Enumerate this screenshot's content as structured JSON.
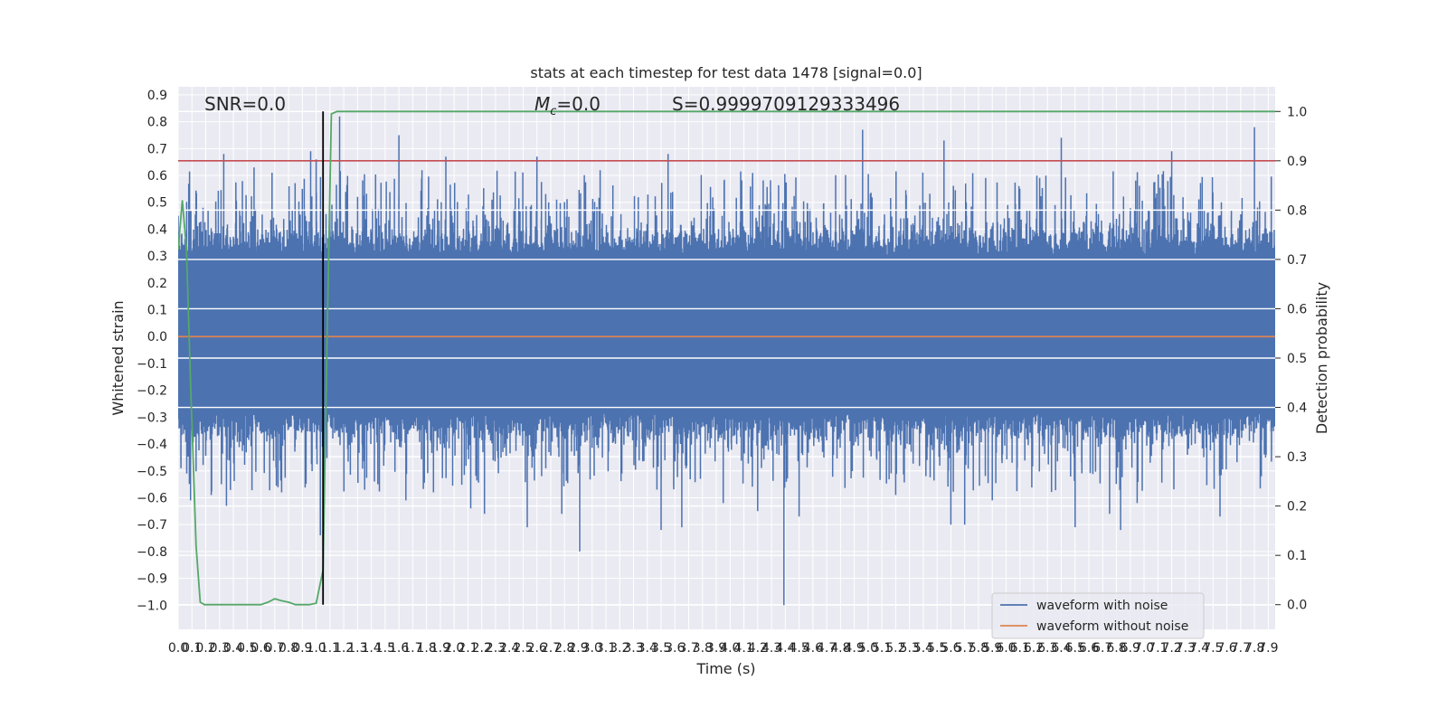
{
  "chart_data": {
    "type": "line",
    "title": "stats at each timestep for test data 1478 [signal=0.0]",
    "xlabel": "Time (s)",
    "ylabel": "Whitened strain",
    "y2label": "Detection probability",
    "xlim": [
      0.0,
      7.95
    ],
    "ylim": [
      -1.09,
      0.93
    ],
    "y2lim": [
      -0.05,
      1.05
    ],
    "x_ticks": [
      "0.0",
      "0.1",
      "0.2",
      "0.3",
      "0.4",
      "0.5",
      "0.6",
      "0.7",
      "0.8",
      "0.9",
      "1.0",
      "1.1",
      "1.2",
      "1.3",
      "1.4",
      "1.5",
      "1.6",
      "1.7",
      "1.8",
      "1.9",
      "2.0",
      "2.1",
      "2.2",
      "2.3",
      "2.4",
      "2.5",
      "2.6",
      "2.7",
      "2.8",
      "2.9",
      "3.0",
      "3.1",
      "3.2",
      "3.3",
      "3.4",
      "3.5",
      "3.6",
      "3.7",
      "3.8",
      "3.9",
      "4.0",
      "4.1",
      "4.2",
      "4.3",
      "4.4",
      "4.5",
      "4.6",
      "4.7",
      "4.8",
      "4.9",
      "5.0",
      "5.1",
      "5.2",
      "5.3",
      "5.4",
      "5.5",
      "5.6",
      "5.7",
      "5.8",
      "5.9",
      "6.0",
      "6.1",
      "6.2",
      "6.3",
      "6.4",
      "6.5",
      "6.6",
      "6.7",
      "6.8",
      "6.9",
      "7.0",
      "7.1",
      "7.2",
      "7.3",
      "7.4",
      "7.5",
      "7.6",
      "7.7",
      "7.8",
      "7.9"
    ],
    "y_ticks": [
      "-1.0",
      "-0.9",
      "-0.8",
      "-0.7",
      "-0.6",
      "-0.5",
      "-0.4",
      "-0.3",
      "-0.2",
      "-0.1",
      "0.0",
      "0.1",
      "0.2",
      "0.3",
      "0.4",
      "0.5",
      "0.6",
      "0.7",
      "0.8",
      "0.9"
    ],
    "y2_ticks": [
      "0.0",
      "0.1",
      "0.2",
      "0.3",
      "0.4",
      "0.5",
      "0.6",
      "0.7",
      "0.8",
      "0.9",
      "1.0"
    ],
    "annotations": {
      "snr": "SNR=0.0",
      "mc_symbol": "M",
      "mc_sub": "c",
      "mc_value": "=0.0",
      "score": "S=0.9999709129333496"
    },
    "legend": {
      "placement": "lower right",
      "entries": [
        {
          "label": "waveform with noise",
          "color": "#4c72b0"
        },
        {
          "label": "waveform without noise",
          "color": "#dd8452"
        }
      ]
    },
    "threshold": {
      "axis": "right",
      "value": 0.9,
      "color": "#c44e52"
    },
    "marker_x": 1.05,
    "series": [
      {
        "name": "waveform with noise",
        "axis": "left",
        "color": "#4c72b0",
        "style": "dense noise, typical band -0.35 to 0.45, peaks listed",
        "peaks": [
          {
            "x": 0.0,
            "y": 0.45
          },
          {
            "x": 0.02,
            "y": -0.49
          },
          {
            "x": 0.08,
            "y": 0.5
          },
          {
            "x": 0.09,
            "y": -0.61
          },
          {
            "x": 0.18,
            "y": 0.48
          },
          {
            "x": 0.24,
            "y": -0.59
          },
          {
            "x": 0.33,
            "y": 0.68
          },
          {
            "x": 0.35,
            "y": -0.63
          },
          {
            "x": 0.45,
            "y": 0.45
          },
          {
            "x": 0.55,
            "y": 0.63
          },
          {
            "x": 0.68,
            "y": 0.61
          },
          {
            "x": 0.75,
            "y": -0.58
          },
          {
            "x": 0.9,
            "y": 0.55
          },
          {
            "x": 0.96,
            "y": 0.69
          },
          {
            "x": 1.0,
            "y": 0.66
          },
          {
            "x": 1.03,
            "y": -0.74
          },
          {
            "x": 1.06,
            "y": -0.62
          },
          {
            "x": 1.1,
            "y": 0.47
          },
          {
            "x": 1.17,
            "y": 0.82
          },
          {
            "x": 1.3,
            "y": 0.52
          },
          {
            "x": 1.6,
            "y": 0.75
          },
          {
            "x": 1.65,
            "y": -0.61
          },
          {
            "x": 1.85,
            "y": -0.58
          },
          {
            "x": 1.94,
            "y": 0.67
          },
          {
            "x": 2.12,
            "y": -0.64
          },
          {
            "x": 2.22,
            "y": -0.66
          },
          {
            "x": 2.53,
            "y": -0.71
          },
          {
            "x": 2.6,
            "y": 0.67
          },
          {
            "x": 2.78,
            "y": -0.66
          },
          {
            "x": 2.91,
            "y": -0.8
          },
          {
            "x": 3.5,
            "y": -0.72
          },
          {
            "x": 3.55,
            "y": 0.68
          },
          {
            "x": 3.65,
            "y": -0.71
          },
          {
            "x": 3.95,
            "y": -0.62
          },
          {
            "x": 4.2,
            "y": -0.65
          },
          {
            "x": 4.39,
            "y": -1.0
          },
          {
            "x": 4.5,
            "y": -0.67
          },
          {
            "x": 4.96,
            "y": 0.77
          },
          {
            "x": 5.2,
            "y": -0.59
          },
          {
            "x": 5.55,
            "y": 0.73
          },
          {
            "x": 5.6,
            "y": -0.7
          },
          {
            "x": 5.7,
            "y": -0.7
          },
          {
            "x": 5.9,
            "y": -0.61
          },
          {
            "x": 6.4,
            "y": 0.74
          },
          {
            "x": 6.5,
            "y": -0.71
          },
          {
            "x": 6.75,
            "y": -0.66
          },
          {
            "x": 6.83,
            "y": -0.72
          },
          {
            "x": 6.95,
            "y": -0.62
          },
          {
            "x": 7.2,
            "y": 0.69
          },
          {
            "x": 7.55,
            "y": -0.67
          },
          {
            "x": 7.8,
            "y": 0.78
          },
          {
            "x": 7.85,
            "y": -0.52
          }
        ]
      },
      {
        "name": "waveform without noise",
        "axis": "left",
        "color": "#dd8452",
        "x": [
          0.0,
          7.95
        ],
        "y": [
          0.0,
          0.0
        ]
      },
      {
        "name": "detection probability",
        "axis": "right",
        "color": "#55a868",
        "x": [
          0.0,
          0.03,
          0.06,
          0.09,
          0.13,
          0.16,
          0.19,
          0.25,
          0.3,
          0.35,
          0.4,
          0.45,
          0.5,
          0.55,
          0.6,
          0.65,
          0.7,
          0.75,
          0.8,
          0.85,
          0.9,
          0.95,
          1.0,
          1.05,
          1.08,
          1.11,
          1.15,
          1.2,
          1.5,
          2.0,
          3.0,
          4.0,
          5.0,
          6.0,
          7.0,
          7.95
        ],
        "y": [
          0.72,
          0.82,
          0.72,
          0.45,
          0.12,
          0.005,
          0.0,
          0.0,
          0.0,
          0.0,
          0.0,
          0.0,
          0.0,
          0.0,
          0.0,
          0.005,
          0.012,
          0.008,
          0.005,
          0.0,
          0.0,
          0.0,
          0.003,
          0.07,
          0.55,
          0.995,
          1.0,
          1.0,
          1.0,
          1.0,
          1.0,
          1.0,
          1.0,
          1.0,
          1.0,
          1.0
        ]
      }
    ]
  }
}
